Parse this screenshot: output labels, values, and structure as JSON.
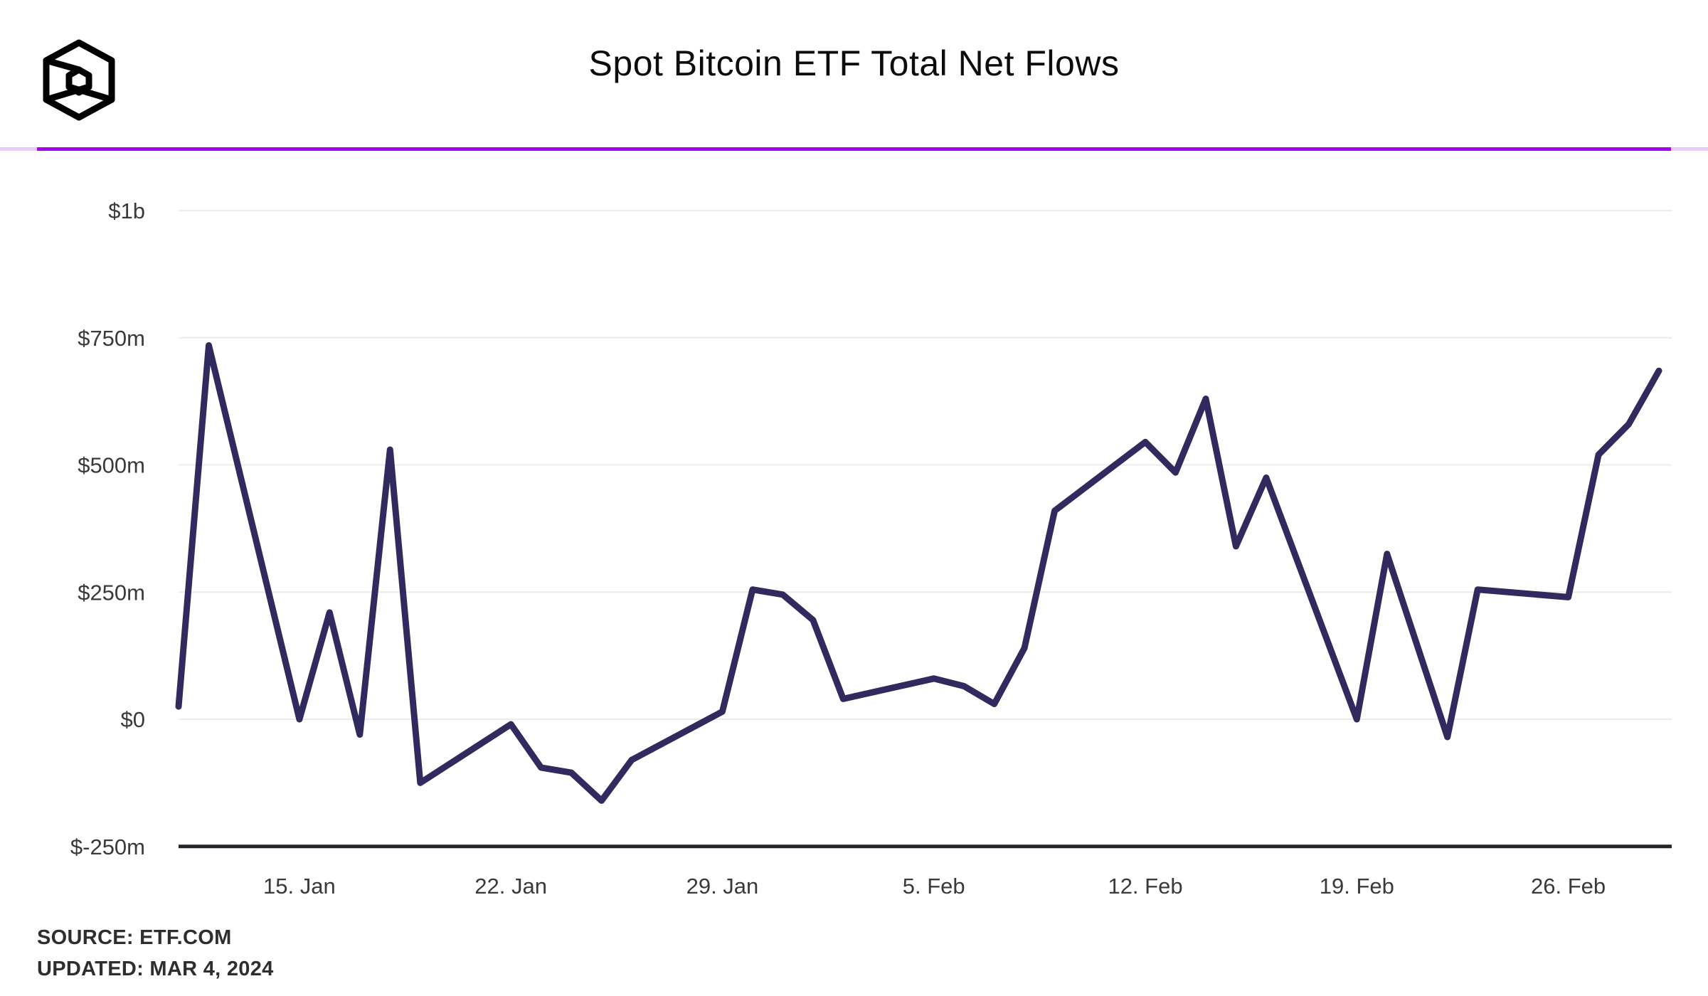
{
  "header": {
    "title": "Spot Bitcoin ETF Total Net Flows",
    "logo_name": "the-block-logo",
    "accent_color": "#a503f1",
    "accent_pale_color": "#e7ccf9"
  },
  "chart_data": {
    "type": "line",
    "title": "Spot Bitcoin ETF Total Net Flows",
    "unit": "USD millions",
    "line_color": "#302a5e",
    "grid": true,
    "ylim": [
      -250,
      1000
    ],
    "x": [
      "2024-01-11",
      "2024-01-12",
      "2024-01-15",
      "2024-01-16",
      "2024-01-17",
      "2024-01-18",
      "2024-01-19",
      "2024-01-22",
      "2024-01-23",
      "2024-01-24",
      "2024-01-25",
      "2024-01-26",
      "2024-01-29",
      "2024-01-30",
      "2024-01-31",
      "2024-02-01",
      "2024-02-02",
      "2024-02-05",
      "2024-02-06",
      "2024-02-07",
      "2024-02-08",
      "2024-02-09",
      "2024-02-12",
      "2024-02-13",
      "2024-02-14",
      "2024-02-15",
      "2024-02-16",
      "2024-02-19",
      "2024-02-20",
      "2024-02-21",
      "2024-02-22",
      "2024-02-23",
      "2024-02-26",
      "2024-02-27",
      "2024-02-28",
      "2024-02-29"
    ],
    "values": [
      25,
      735,
      0,
      210,
      -30,
      530,
      -125,
      -10,
      -95,
      -105,
      -160,
      -80,
      15,
      255,
      245,
      195,
      40,
      80,
      65,
      30,
      140,
      410,
      545,
      485,
      630,
      340,
      475,
      0,
      325,
      145,
      -35,
      255,
      240,
      520,
      580,
      685
    ],
    "y_ticks": [
      {
        "label": "$1b",
        "value": 1000
      },
      {
        "label": "$750m",
        "value": 750
      },
      {
        "label": "$500m",
        "value": 500
      },
      {
        "label": "$250m",
        "value": 250
      },
      {
        "label": "$0",
        "value": 0
      },
      {
        "label": "$-250m",
        "value": -250
      }
    ],
    "x_tick_labels": [
      {
        "date": "2024-01-15",
        "label": "15. Jan"
      },
      {
        "date": "2024-01-22",
        "label": "22. Jan"
      },
      {
        "date": "2024-01-29",
        "label": "29. Jan"
      },
      {
        "date": "2024-02-05",
        "label": "5. Feb"
      },
      {
        "date": "2024-02-12",
        "label": "12. Feb"
      },
      {
        "date": "2024-02-19",
        "label": "19. Feb"
      },
      {
        "date": "2024-02-26",
        "label": "26. Feb"
      }
    ]
  },
  "footer": {
    "source_line": "SOURCE: ETF.COM",
    "updated_line": "UPDATED: MAR 4, 2024"
  }
}
